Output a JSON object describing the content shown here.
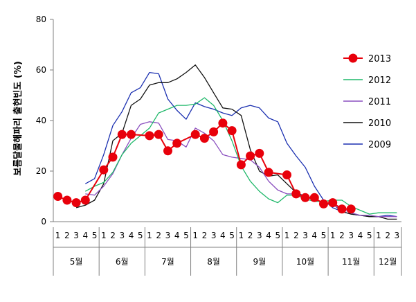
{
  "chart_data": {
    "type": "line",
    "ylabel": "보름달물해파리 출현빈도 (%)",
    "ylim": [
      0,
      80
    ],
    "yticks": [
      0,
      20,
      40,
      60,
      80
    ],
    "x_week_labels": [
      "1",
      "2",
      "3",
      "4",
      "5",
      "1",
      "2",
      "3",
      "4",
      "5",
      "1",
      "2",
      "3",
      "4",
      "5",
      "1",
      "2",
      "3",
      "4",
      "5",
      "1",
      "2",
      "3",
      "4",
      "5",
      "1",
      "2",
      "3",
      "4",
      "5",
      "1",
      "2",
      "3",
      "4",
      "5",
      "1",
      "2",
      "3"
    ],
    "months": [
      {
        "label": "5월",
        "start": 0,
        "end": 4
      },
      {
        "label": "6월",
        "start": 5,
        "end": 9
      },
      {
        "label": "7월",
        "start": 10,
        "end": 14
      },
      {
        "label": "8월",
        "start": 15,
        "end": 19
      },
      {
        "label": "9월",
        "start": 20,
        "end": 24
      },
      {
        "label": "10월",
        "start": 25,
        "end": 29
      },
      {
        "label": "11월",
        "start": 30,
        "end": 34
      },
      {
        "label": "12월",
        "start": 35,
        "end": 37
      }
    ],
    "grid": false,
    "legend_position": "right",
    "series": [
      {
        "name": "2013",
        "color": "#e8000b",
        "marker": "circle",
        "points": [
          [
            0,
            10
          ],
          [
            1,
            8.5
          ],
          [
            2,
            7.5
          ],
          [
            3,
            8.5
          ],
          [
            5,
            20.5
          ],
          [
            6,
            25.5
          ],
          [
            7,
            34.5
          ],
          [
            8,
            34.5
          ],
          [
            10,
            34
          ],
          [
            11,
            34.5
          ],
          [
            12,
            28
          ],
          [
            13,
            31
          ],
          [
            15,
            34.5
          ],
          [
            16,
            33
          ],
          [
            17,
            35.5
          ],
          [
            18,
            39
          ],
          [
            19,
            36
          ],
          [
            20,
            22.5
          ],
          [
            21,
            26
          ],
          [
            22,
            27
          ],
          [
            23,
            19.5
          ],
          [
            25,
            18.5
          ],
          [
            26,
            11
          ],
          [
            27,
            9.5
          ],
          [
            28,
            9.5
          ],
          [
            29,
            7
          ],
          [
            30,
            7.5
          ],
          [
            31,
            5
          ],
          [
            32,
            5
          ]
        ]
      },
      {
        "name": "2012",
        "color": "#1fb86a",
        "marker": "none",
        "points": [
          [
            3,
            12
          ],
          [
            4,
            14
          ],
          [
            5,
            15.5
          ],
          [
            6,
            19.5
          ],
          [
            7,
            26.5
          ],
          [
            8,
            31
          ],
          [
            9,
            34
          ],
          [
            10,
            37
          ],
          [
            11,
            43
          ],
          [
            12,
            44.5
          ],
          [
            13,
            46
          ],
          [
            14,
            46
          ],
          [
            15,
            46.5
          ],
          [
            16,
            49
          ],
          [
            17,
            46
          ],
          [
            18,
            40
          ],
          [
            19,
            32
          ],
          [
            20,
            22
          ],
          [
            21,
            16
          ],
          [
            22,
            12
          ],
          [
            23,
            9
          ],
          [
            24,
            7.5
          ],
          [
            25,
            10.5
          ],
          [
            26,
            10.5
          ],
          [
            27,
            9
          ],
          [
            28,
            8
          ],
          [
            29,
            8
          ],
          [
            30,
            8.5
          ],
          [
            31,
            8.5
          ],
          [
            32,
            6
          ],
          [
            33,
            4.5
          ],
          [
            34,
            3
          ],
          [
            35,
            3.5
          ],
          [
            36,
            3.5
          ],
          [
            37,
            3.5
          ]
        ]
      },
      {
        "name": "2011",
        "color": "#8a4fbf",
        "marker": "none",
        "points": [
          [
            3,
            11
          ],
          [
            4,
            10.5
          ],
          [
            5,
            14
          ],
          [
            6,
            19
          ],
          [
            7,
            26.5
          ],
          [
            8,
            33
          ],
          [
            9,
            38.5
          ],
          [
            10,
            39.5
          ],
          [
            11,
            39
          ],
          [
            12,
            32.5
          ],
          [
            13,
            32
          ],
          [
            14,
            29.5
          ],
          [
            15,
            37
          ],
          [
            16,
            35
          ],
          [
            17,
            32
          ],
          [
            18,
            26.5
          ],
          [
            19,
            25.5
          ],
          [
            20,
            25
          ],
          [
            21,
            24.5
          ],
          [
            22,
            21.5
          ],
          [
            23,
            16
          ],
          [
            24,
            12.5
          ],
          [
            25,
            11
          ],
          [
            26,
            11
          ],
          [
            27,
            10
          ],
          [
            28,
            8.5
          ],
          [
            29,
            7.5
          ],
          [
            30,
            6.5
          ],
          [
            31,
            5
          ],
          [
            32,
            3.5
          ],
          [
            33,
            2.5
          ],
          [
            34,
            2.5
          ],
          [
            35,
            2
          ],
          [
            36,
            2
          ],
          [
            37,
            2
          ]
        ]
      },
      {
        "name": "2010",
        "color": "#111111",
        "marker": "none",
        "points": [
          [
            2,
            5.5
          ],
          [
            3,
            6.5
          ],
          [
            4,
            8.5
          ],
          [
            5,
            15
          ],
          [
            6,
            32
          ],
          [
            7,
            35
          ],
          [
            8,
            46
          ],
          [
            9,
            48.5
          ],
          [
            10,
            54
          ],
          [
            11,
            55
          ],
          [
            12,
            55
          ],
          [
            13,
            56.5
          ],
          [
            14,
            59
          ],
          [
            15,
            62
          ],
          [
            16,
            57
          ],
          [
            17,
            51
          ],
          [
            18,
            45
          ],
          [
            19,
            44.5
          ],
          [
            20,
            42
          ],
          [
            21,
            28.5
          ],
          [
            22,
            20
          ],
          [
            23,
            18
          ],
          [
            24,
            18.5
          ],
          [
            25,
            15
          ],
          [
            26,
            11.5
          ],
          [
            27,
            10
          ],
          [
            28,
            8.5
          ],
          [
            29,
            7.5
          ],
          [
            30,
            7
          ],
          [
            31,
            4
          ],
          [
            32,
            3
          ],
          [
            33,
            2.5
          ],
          [
            34,
            2
          ],
          [
            35,
            2
          ],
          [
            36,
            1
          ],
          [
            37,
            1
          ]
        ]
      },
      {
        "name": "2009",
        "color": "#1a2fb0",
        "marker": "none",
        "points": [
          [
            3,
            15
          ],
          [
            4,
            17
          ],
          [
            5,
            26.5
          ],
          [
            6,
            38
          ],
          [
            7,
            43.5
          ],
          [
            8,
            51
          ],
          [
            9,
            53
          ],
          [
            10,
            59
          ],
          [
            11,
            58.5
          ],
          [
            12,
            48.5
          ],
          [
            13,
            44
          ],
          [
            14,
            40.5
          ],
          [
            15,
            47
          ],
          [
            16,
            45.5
          ],
          [
            17,
            44.5
          ],
          [
            18,
            43
          ],
          [
            19,
            42
          ],
          [
            20,
            45
          ],
          [
            21,
            46
          ],
          [
            22,
            45
          ],
          [
            23,
            41
          ],
          [
            24,
            39.5
          ],
          [
            25,
            31
          ],
          [
            26,
            26
          ],
          [
            27,
            21.5
          ],
          [
            28,
            14
          ],
          [
            29,
            8.5
          ],
          [
            30,
            5.5
          ],
          [
            31,
            4
          ],
          [
            32,
            3
          ],
          [
            33,
            2.5
          ],
          [
            34,
            2
          ],
          [
            35,
            2
          ],
          [
            36,
            2.5
          ],
          [
            37,
            2
          ]
        ]
      }
    ]
  }
}
